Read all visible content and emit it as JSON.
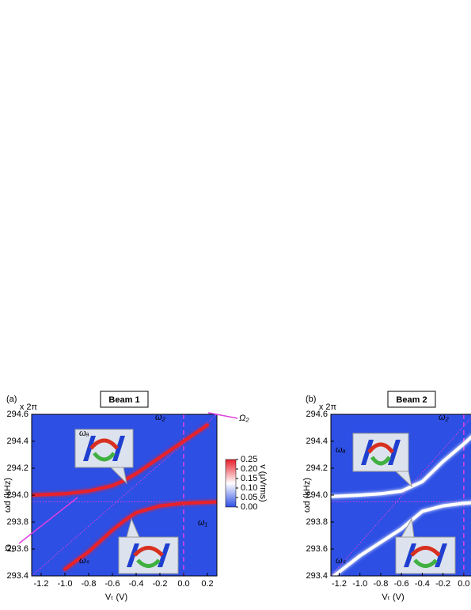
{
  "chart_data": [
    {
      "type": "heatmap-curves",
      "panel": "(a)",
      "title": "Beam 1",
      "factor": "x 2π",
      "x_label": "Vₜ (V)",
      "y_label": "ωd (kHz)",
      "background": "#2d4fe4",
      "xlim": [
        -1.28,
        0.28
      ],
      "ylim": [
        293.4,
        294.6
      ],
      "xticks": [
        -1.2,
        {
          "value": -1.0,
          "label": "-1.0"
        },
        -0.8,
        -0.6,
        -0.4,
        -0.2,
        {
          "value": 0.0,
          "label": "0.0"
        },
        0.2
      ],
      "yticks": [
        293.4,
        293.6,
        293.8,
        {
          "value": 294.0,
          "label": "294.0"
        },
        294.2,
        294.4,
        294.6
      ],
      "reference_x": 0.0,
      "reference_y": 293.95,
      "series": [
        {
          "color": "#e8202a",
          "x": [
            -1.28,
            -1.0,
            -0.8,
            -0.6,
            -0.5,
            -0.4,
            -0.2,
            0.0,
            0.2
          ],
          "values": [
            294.0,
            294.01,
            294.03,
            294.07,
            294.11,
            294.16,
            294.28,
            294.4,
            294.52
          ]
        },
        {
          "color": "#e8202a",
          "x": [
            -1.0,
            -0.8,
            -0.6,
            -0.5,
            -0.4,
            -0.2,
            0.0,
            0.28
          ],
          "values": [
            293.45,
            293.58,
            293.74,
            293.81,
            293.87,
            293.92,
            293.94,
            293.95
          ]
        }
      ],
      "colorbar": {
        "label": "v (μVrms)",
        "lim": [
          0,
          0.25
        ],
        "ticks": [
          {
            "value": 0,
            "label": "0.00"
          },
          0.05,
          {
            "value": 0.1,
            "label": "0.10"
          },
          0.15,
          {
            "value": 0.2,
            "label": "0.20"
          },
          0.25
        ]
      },
      "annotations": [
        "ωₐ",
        "ωₛ",
        "ω₂",
        "ω₁",
        "Ω₁",
        "Ω₂"
      ]
    },
    {
      "type": "heatmap-curves",
      "panel": "(b)",
      "title": "Beam 2",
      "factor": "x 2π",
      "x_label": "Vₜ (V)",
      "y_label": "ωd (kHz)",
      "background": "#2d4fe4",
      "xlim": [
        -1.28,
        0.1
      ],
      "ylim": [
        293.4,
        294.6
      ],
      "xticks": [
        -1.2,
        {
          "value": -1.0,
          "label": "-1.0"
        },
        -0.8,
        -0.6,
        -0.4,
        -0.2,
        {
          "value": 0.0,
          "label": "0.0"
        }
      ],
      "yticks": [
        293.4,
        293.6,
        293.8,
        {
          "value": 294.0,
          "label": "294.0"
        },
        294.2,
        294.4,
        294.6
      ],
      "reference_x": 0.0,
      "reference_y": 293.95,
      "series": [
        {
          "color": "#ffffff",
          "x": [
            -1.28,
            -1.0,
            -0.8,
            -0.6,
            -0.4,
            -0.2,
            0.0,
            0.1
          ],
          "values": [
            293.99,
            294.0,
            294.01,
            294.03,
            294.1,
            294.25,
            294.38,
            294.45
          ]
        },
        {
          "color": "#ffffff",
          "x": [
            -1.25,
            -1.0,
            -0.8,
            -0.6,
            -0.4,
            -0.2,
            0.0,
            0.1
          ],
          "values": [
            293.4,
            293.55,
            293.65,
            293.75,
            293.88,
            293.92,
            293.94,
            293.945
          ]
        }
      ],
      "annotations": [
        "ωₐ",
        "ωₛ",
        "ω₂"
      ]
    }
  ]
}
